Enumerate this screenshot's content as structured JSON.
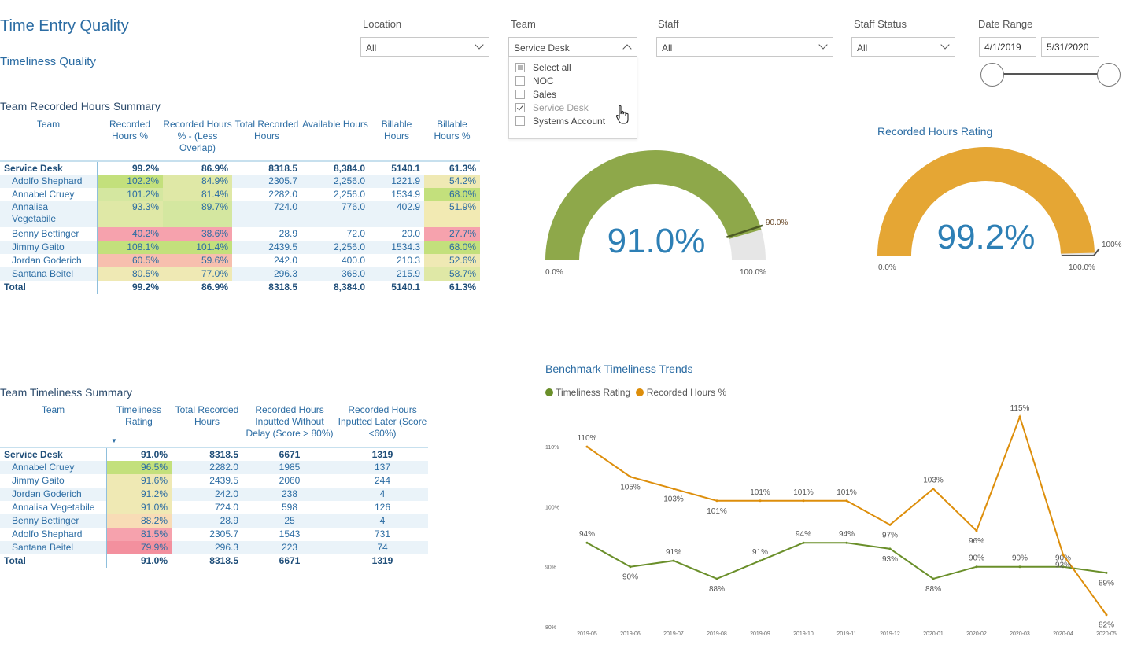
{
  "header": {
    "title": "Time Entry Quality",
    "subtitle": "Timeliness Quality"
  },
  "slicers": {
    "location": {
      "label": "Location",
      "value": "All"
    },
    "team": {
      "label": "Team",
      "value": "Service Desk",
      "options": [
        {
          "label": "Select all",
          "state": "partial"
        },
        {
          "label": "NOC",
          "state": "unchecked"
        },
        {
          "label": "Sales",
          "state": "unchecked"
        },
        {
          "label": "Service Desk",
          "state": "checked"
        },
        {
          "label": "Systems Account",
          "state": "unchecked"
        }
      ]
    },
    "staff": {
      "label": "Staff",
      "value": "All"
    },
    "staff_status": {
      "label": "Staff Status",
      "value": "All"
    },
    "date_range": {
      "label": "Date Range",
      "start": "4/1/2019",
      "end": "5/31/2020"
    }
  },
  "recorded_summary": {
    "title": "Team Recorded Hours Summary",
    "headers": [
      "Team",
      "Recorded Hours %",
      "Recorded Hours % - (Less Overlap)",
      "Total Recorded Hours",
      "Available Hours",
      "Billable Hours",
      "Billable Hours %"
    ],
    "group": [
      "Service Desk",
      "99.2%",
      "86.9%",
      "8318.5",
      "8,384.0",
      "5140.1",
      "61.3%"
    ],
    "rows": [
      [
        "Adolfo Shephard",
        "102.2%",
        "84.9%",
        "2305.7",
        "2,256.0",
        "1221.9",
        "54.2%"
      ],
      [
        "Annabel Cruey",
        "101.2%",
        "81.4%",
        "2282.0",
        "2,256.0",
        "1534.9",
        "68.0%"
      ],
      [
        "Annalisa Vegetabile",
        "93.3%",
        "89.7%",
        "724.0",
        "776.0",
        "402.9",
        "51.9%"
      ],
      [
        "Benny Bettinger",
        "40.2%",
        "38.6%",
        "28.9",
        "72.0",
        "20.0",
        "27.7%"
      ],
      [
        "Jimmy Gaito",
        "108.1%",
        "101.4%",
        "2439.5",
        "2,256.0",
        "1534.3",
        "68.0%"
      ],
      [
        "Jordan Goderich",
        "60.5%",
        "59.6%",
        "242.0",
        "400.0",
        "210.3",
        "52.6%"
      ],
      [
        "Santana Beitel",
        "80.5%",
        "77.0%",
        "296.3",
        "368.0",
        "215.9",
        "58.7%"
      ]
    ],
    "total": [
      "Total",
      "99.2%",
      "86.9%",
      "8318.5",
      "8,384.0",
      "5140.1",
      "61.3%"
    ]
  },
  "timeliness_summary": {
    "title": "Team Timeliness Summary",
    "headers": [
      "Team",
      "Timeliness Rating",
      "Total Recorded Hours",
      "Recorded Hours Inputted Without Delay (Score > 80%)",
      "Recorded Hours Inputted Later (Score <60%)"
    ],
    "sort_indicator": "▼",
    "group": [
      "Service Desk",
      "91.0%",
      "8318.5",
      "6671",
      "1319"
    ],
    "rows": [
      [
        "Annabel Cruey",
        "96.5%",
        "2282.0",
        "1985",
        "137"
      ],
      [
        "Jimmy Gaito",
        "91.6%",
        "2439.5",
        "2060",
        "244"
      ],
      [
        "Jordan Goderich",
        "91.2%",
        "242.0",
        "238",
        "4"
      ],
      [
        "Annalisa Vegetabile",
        "91.0%",
        "724.0",
        "598",
        "126"
      ],
      [
        "Benny Bettinger",
        "88.2%",
        "28.9",
        "25",
        "4"
      ],
      [
        "Adolfo Shephard",
        "81.5%",
        "2305.7",
        "1543",
        "731"
      ],
      [
        "Santana Beitel",
        "79.9%",
        "296.3",
        "223",
        "74"
      ]
    ],
    "total": [
      "Total",
      "91.0%",
      "8318.5",
      "6671",
      "1319"
    ]
  },
  "gauges": {
    "timeliness": {
      "value_label": "91.0%",
      "value": 91.0,
      "target": 90.0,
      "target_label": "90.0%",
      "min_label": "0.0%",
      "max_label": "100.0%",
      "color": "#8ea84a"
    },
    "recorded": {
      "title": "Recorded Hours Rating",
      "value_label": "99.2%",
      "value": 99.2,
      "target": 100,
      "target_label": "100%",
      "min_label": "0.0%",
      "max_label": "100.0%",
      "color": "#e5a634"
    }
  },
  "chart_data": {
    "type": "line",
    "title": "Benchmark  Timeliness Trends",
    "categories": [
      "2019-05",
      "2019-06",
      "2019-07",
      "2019-08",
      "2019-09",
      "2019-10",
      "2019-11",
      "2019-12",
      "2020-01",
      "2020-02",
      "2020-03",
      "2020-04",
      "2020-05"
    ],
    "series": [
      {
        "name": "Timeliness Rating",
        "color": "#6a8f2a",
        "values": [
          94,
          90,
          91,
          88,
          91,
          94,
          94,
          93,
          88,
          90,
          90,
          90,
          89
        ]
      },
      {
        "name": "Recorded Hours %",
        "color": "#dd8e0b",
        "values": [
          110,
          105,
          103,
          101,
          101,
          101,
          101,
          97,
          103,
          96,
          115,
          92,
          82
        ]
      }
    ],
    "y_ticks": [
      "80%",
      "90%",
      "100%",
      "110%"
    ],
    "ylim": [
      80,
      115
    ],
    "legend": "top-left"
  }
}
